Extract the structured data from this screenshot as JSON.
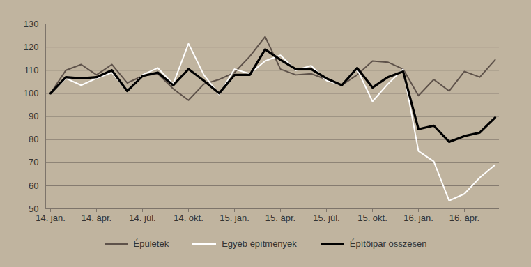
{
  "chart_data": {
    "type": "line",
    "categories": [
      "14. jan.",
      null,
      null,
      "14. ápr.",
      null,
      null,
      "14. júl.",
      null,
      null,
      "14. okt.",
      null,
      null,
      "15. jan.",
      null,
      null,
      "15. ápr.",
      null,
      null,
      "15. júl.",
      null,
      null,
      "15. okt.",
      null,
      null,
      "16. jan.",
      null,
      null,
      "16. ápr.",
      null,
      null
    ],
    "series": [
      {
        "name": "Épületek",
        "color": "#5e524a",
        "values": [
          100,
          110,
          112.5,
          108,
          112.5,
          104.5,
          107.5,
          108.5,
          102,
          97,
          104,
          106,
          109,
          116,
          124.5,
          110.5,
          108,
          108.5,
          106,
          103.5,
          108,
          114,
          113.5,
          110.5,
          99,
          106,
          101,
          109.5,
          107,
          114.5
        ]
      },
      {
        "name": "Egyéb építmények",
        "color": "#ffffff",
        "values": [
          100,
          106.5,
          103.5,
          106.5,
          109,
          101,
          108,
          111,
          104,
          121.5,
          108,
          99.5,
          110.5,
          108.5,
          114,
          116.5,
          110,
          112,
          105.5,
          103.5,
          110.5,
          96.5,
          104,
          110.5,
          75,
          70.5,
          53.5,
          56.5,
          63.5,
          69
        ]
      },
      {
        "name": "Építőipar összesen",
        "color": "#000000",
        "values": [
          100,
          107,
          106.5,
          107,
          110,
          101,
          107.5,
          109,
          103.5,
          110.5,
          105.5,
          100,
          108,
          108,
          119,
          114.5,
          110.5,
          110.5,
          106.5,
          103.5,
          111,
          102.5,
          107,
          109.5,
          84.5,
          86,
          79,
          81.5,
          83,
          89.5
        ]
      }
    ],
    "ylim": [
      50,
      130
    ],
    "yticks": [
      50,
      60,
      70,
      80,
      90,
      100,
      110,
      120,
      130
    ],
    "grid": true,
    "legend": "bottom"
  }
}
